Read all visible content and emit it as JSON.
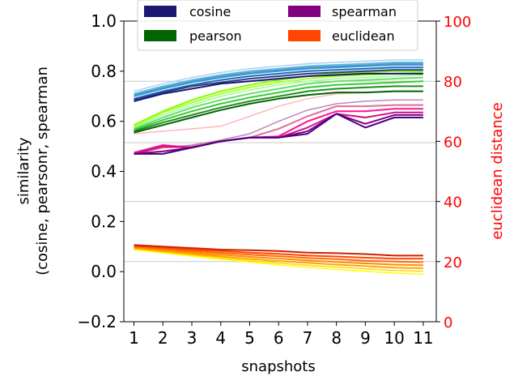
{
  "chart_data": {
    "type": "line",
    "x": [
      1,
      2,
      3,
      4,
      5,
      6,
      7,
      8,
      9,
      10,
      11
    ],
    "xlabel": "snapshots",
    "xtick_labels": [
      "1",
      "2",
      "3",
      "4",
      "5",
      "6",
      "7",
      "8",
      "9",
      "10",
      "11"
    ],
    "ylabel_line1": "similarity",
    "ylabel_line2": "(cosine, pearsonr, spearman",
    "ylim": [
      -0.2,
      1.0
    ],
    "ytick_labels": [
      "−0.2",
      "0.0",
      "0.2",
      "0.4",
      "0.6",
      "0.8",
      "1.0"
    ],
    "y2label": "euclidean distance",
    "y2lim": [
      0,
      100
    ],
    "y2tick_labels": [
      "0",
      "20",
      "40",
      "60",
      "80",
      "100"
    ],
    "y2_color": "#ff0000",
    "legend": {
      "location": "upper-center",
      "entries": [
        {
          "label": "cosine",
          "color": "#191970"
        },
        {
          "label": "spearman",
          "color": "#800080"
        },
        {
          "label": "pearson",
          "color": "#006400"
        },
        {
          "label": "euclidean",
          "color": "#ff4500"
        }
      ]
    },
    "groups": [
      {
        "name": "cosine",
        "axis": "left",
        "series": [
          {
            "name": "cosine-1",
            "color": "#191970",
            "values": [
              0.68,
              0.71,
              0.73,
              0.75,
              0.76,
              0.77,
              0.78,
              0.785,
              0.79,
              0.79,
              0.79
            ]
          },
          {
            "name": "cosine-2",
            "color": "#27408b",
            "values": [
              0.685,
              0.715,
              0.74,
              0.755,
              0.77,
              0.78,
              0.79,
              0.795,
              0.8,
              0.805,
              0.805
            ]
          },
          {
            "name": "cosine-3",
            "color": "#1e6bb8",
            "values": [
              0.69,
              0.72,
              0.745,
              0.765,
              0.78,
              0.79,
              0.8,
              0.805,
              0.81,
              0.815,
              0.815
            ]
          },
          {
            "name": "cosine-4",
            "color": "#4a90d9",
            "values": [
              0.7,
              0.73,
              0.755,
              0.775,
              0.79,
              0.8,
              0.81,
              0.815,
              0.82,
              0.825,
              0.825
            ]
          },
          {
            "name": "cosine-5",
            "color": "#6fb1e8",
            "values": [
              0.71,
              0.74,
              0.765,
              0.785,
              0.8,
              0.81,
              0.82,
              0.825,
              0.83,
              0.835,
              0.835
            ]
          },
          {
            "name": "cosine-6",
            "color": "#a6d4f2",
            "values": [
              0.72,
              0.75,
              0.775,
              0.795,
              0.81,
              0.82,
              0.83,
              0.835,
              0.84,
              0.845,
              0.845
            ]
          },
          {
            "name": "cosine-7",
            "color": "#20b2aa",
            "values": [
              0.705,
              0.735,
              0.76,
              0.78,
              0.795,
              0.805,
              0.815,
              0.82,
              0.825,
              0.83,
              0.83
            ]
          }
        ]
      },
      {
        "name": "pearson",
        "axis": "left",
        "series": [
          {
            "name": "pearson-1",
            "color": "#006400",
            "values": [
              0.555,
              0.585,
              0.615,
              0.645,
              0.67,
              0.69,
              0.705,
              0.715,
              0.715,
              0.72,
              0.72
            ]
          },
          {
            "name": "pearson-2",
            "color": "#228b22",
            "values": [
              0.56,
              0.595,
              0.625,
              0.655,
              0.68,
              0.7,
              0.72,
              0.73,
              0.735,
              0.74,
              0.74
            ]
          },
          {
            "name": "pearson-3",
            "color": "#32cd32",
            "values": [
              0.565,
              0.605,
              0.64,
              0.67,
              0.695,
              0.715,
              0.735,
              0.745,
              0.75,
              0.755,
              0.76
            ]
          },
          {
            "name": "pearson-4",
            "color": "#66dd66",
            "values": [
              0.57,
              0.615,
              0.655,
              0.685,
              0.71,
              0.73,
              0.75,
              0.76,
              0.765,
              0.77,
              0.775
            ]
          },
          {
            "name": "pearson-5",
            "color": "#98fb98",
            "values": [
              0.575,
              0.625,
              0.665,
              0.7,
              0.725,
              0.745,
              0.76,
              0.77,
              0.775,
              0.78,
              0.785
            ]
          },
          {
            "name": "pearson-6",
            "color": "#adff2f",
            "values": [
              0.58,
              0.635,
              0.675,
              0.71,
              0.735,
              0.755,
              0.77,
              0.78,
              0.785,
              0.79,
              0.795
            ]
          },
          {
            "name": "pearson-7",
            "color": "#7fff00",
            "values": [
              0.585,
              0.64,
              0.685,
              0.72,
              0.745,
              0.765,
              0.78,
              0.79,
              0.795,
              0.8,
              0.8
            ]
          }
        ]
      },
      {
        "name": "spearman",
        "axis": "left",
        "series": [
          {
            "name": "spearman-1",
            "color": "#4b0082",
            "values": [
              0.47,
              0.47,
              0.495,
              0.52,
              0.535,
              0.535,
              0.55,
              0.63,
              0.575,
              0.615,
              0.615
            ]
          },
          {
            "name": "spearman-2",
            "color": "#800080",
            "values": [
              0.47,
              0.48,
              0.495,
              0.52,
              0.535,
              0.535,
              0.56,
              0.63,
              0.59,
              0.625,
              0.625
            ]
          },
          {
            "name": "spearman-3",
            "color": "#c71585",
            "values": [
              0.47,
              0.5,
              0.495,
              0.52,
              0.535,
              0.535,
              0.575,
              0.63,
              0.615,
              0.635,
              0.635
            ]
          },
          {
            "name": "spearman-4",
            "color": "#ff1493",
            "values": [
              0.475,
              0.505,
              0.495,
              0.52,
              0.535,
              0.54,
              0.6,
              0.64,
              0.64,
              0.65,
              0.65
            ]
          },
          {
            "name": "spearman-5",
            "color": "#db7093",
            "values": [
              0.47,
              0.495,
              0.5,
              0.52,
              0.535,
              0.57,
              0.62,
              0.66,
              0.66,
              0.665,
              0.665
            ]
          },
          {
            "name": "spearman-6",
            "color": "#bb88bb",
            "values": [
              0.475,
              0.495,
              0.505,
              0.525,
              0.55,
              0.6,
              0.645,
              0.67,
              0.68,
              0.685,
              0.685
            ]
          },
          {
            "name": "spearman-7",
            "color": "#ffb6c1",
            "values": [
              0.55,
              0.56,
              0.57,
              0.58,
              0.62,
              0.66,
              0.69,
              0.71,
              0.715,
              0.72,
              0.72
            ]
          }
        ]
      },
      {
        "name": "euclidean",
        "axis": "right",
        "series": [
          {
            "name": "euclidean-1",
            "color": "#cc2200",
            "values": [
              25.5,
              25.0,
              24.5,
              24.0,
              23.8,
              23.5,
              23.0,
              22.8,
              22.5,
              22.0,
              22.0
            ]
          },
          {
            "name": "euclidean-2",
            "color": "#ff4500",
            "values": [
              25.3,
              24.7,
              24.0,
              23.5,
              23.0,
              22.6,
              22.0,
              21.7,
              21.3,
              21.0,
              21.0
            ]
          },
          {
            "name": "euclidean-3",
            "color": "#ff6a00",
            "values": [
              25.0,
              24.3,
              23.5,
              22.9,
              22.3,
              21.8,
              21.2,
              20.8,
              20.3,
              20.0,
              19.8
            ]
          },
          {
            "name": "euclidean-4",
            "color": "#ff8c00",
            "values": [
              24.8,
              23.9,
              23.0,
              22.3,
              21.6,
              21.0,
              20.4,
              19.9,
              19.4,
              19.0,
              18.8
            ]
          },
          {
            "name": "euclidean-5",
            "color": "#ffa500",
            "values": [
              24.5,
              23.5,
              22.6,
              21.7,
              20.9,
              20.2,
              19.6,
              19.0,
              18.5,
              18.0,
              17.8
            ]
          },
          {
            "name": "euclidean-6",
            "color": "#ffd700",
            "values": [
              24.3,
              23.2,
              22.2,
              21.2,
              20.3,
              19.5,
              18.8,
              18.2,
              17.6,
              17.1,
              16.8
            ]
          },
          {
            "name": "euclidean-7",
            "color": "#ffff00",
            "values": [
              24.0,
              22.9,
              21.8,
              20.8,
              19.8,
              18.9,
              18.1,
              17.4,
              16.8,
              16.2,
              15.8
            ]
          }
        ]
      }
    ],
    "horizontal_reference_lines": [
      {
        "axis": "left",
        "value": 0.76
      },
      {
        "axis": "left",
        "value": 0.515
      },
      {
        "axis": "left",
        "value": 0.28
      },
      {
        "axis": "left",
        "value": 0.04
      }
    ],
    "reference_line_color": "#c8c8c8"
  }
}
